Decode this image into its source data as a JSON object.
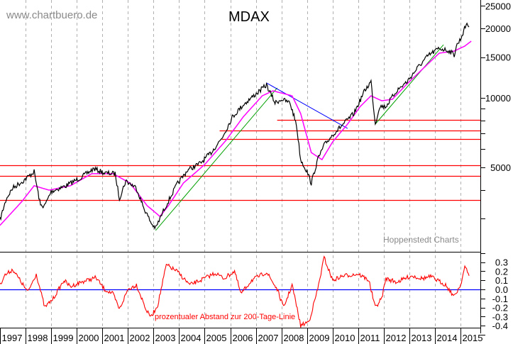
{
  "chart_data": [
    {
      "type": "line",
      "title": "MDAX",
      "watermark": "www.chartbuero.de",
      "source_label": "Hoppenstedt Charts",
      "y_scale": "log",
      "ylim": [
        2000,
        27000
      ],
      "y_ticks": [
        25000,
        20000,
        15000,
        10000,
        5000
      ],
      "y_tick_labels": [
        "25000",
        "20000",
        "15000",
        "10000",
        "5000"
      ],
      "grid": "vertical dashed at year boundaries",
      "colors": {
        "price": "#000000",
        "ma200": "#ff00ff",
        "support": "#ff0000",
        "uptrend": "#00a000",
        "downtrend": "#0000ff"
      },
      "series": [
        {
          "id": "price",
          "x": [
            "1997-01",
            "1997-04",
            "1997-07",
            "1997-12",
            "1998-05",
            "1998-08",
            "1998-10",
            "1999-01",
            "1999-08",
            "2000-03",
            "2000-09",
            "2001-02",
            "2001-07",
            "2001-09",
            "2001-12",
            "2002-05",
            "2002-08",
            "2002-12",
            "2003-02",
            "2003-06",
            "2003-12",
            "2004-05",
            "2004-11",
            "2005-04",
            "2005-09",
            "2006-02",
            "2006-07",
            "2006-12",
            "2007-06",
            "2007-10",
            "2008-01",
            "2008-05",
            "2008-08",
            "2008-10",
            "2009-01",
            "2009-03",
            "2009-06",
            "2009-09",
            "2010-01",
            "2010-06",
            "2010-11",
            "2011-04",
            "2011-07",
            "2011-09",
            "2011-11",
            "2012-02",
            "2012-07",
            "2012-12",
            "2013-05",
            "2013-10",
            "2014-03",
            "2014-08",
            "2014-10",
            "2014-11",
            "2015-01",
            "2015-04",
            "2015-05"
          ],
          "values": [
            2970,
            3670,
            4080,
            4380,
            4800,
            3420,
            3420,
            3940,
            4170,
            4530,
            4940,
            4730,
            4700,
            3670,
            4380,
            4080,
            3420,
            2860,
            2730,
            3300,
            4220,
            4870,
            5220,
            5800,
            6690,
            8260,
            9320,
            10210,
            11360,
            9520,
            9860,
            9520,
            7700,
            5410,
            4800,
            4280,
            5410,
            6230,
            6930,
            7700,
            8560,
            10730,
            11770,
            7700,
            9190,
            9190,
            10730,
            11770,
            13550,
            15280,
            16390,
            15940,
            15280,
            16750,
            17970,
            21140,
            20260
          ]
        },
        {
          "id": "ma200",
          "x": [
            "1997-01",
            "1997-11",
            "1998-05",
            "1998-12",
            "1999-10",
            "2000-08",
            "2001-06",
            "2002-02",
            "2002-10",
            "2003-04",
            "2003-08",
            "2004-03",
            "2005-01",
            "2005-11",
            "2006-07",
            "2007-04",
            "2007-09",
            "2008-06",
            "2008-10",
            "2009-03",
            "2009-08",
            "2010-01",
            "2010-08",
            "2011-02",
            "2011-07",
            "2011-12",
            "2012-05",
            "2012-12",
            "2013-08",
            "2014-03",
            "2014-10",
            "2015-03",
            "2015-06"
          ],
          "values": [
            2810,
            3540,
            4170,
            3990,
            4170,
            4700,
            4700,
            4280,
            3420,
            3070,
            3420,
            4280,
            5150,
            6550,
            8260,
            10210,
            10730,
            10210,
            8560,
            5800,
            5410,
            6450,
            7700,
            9190,
            10210,
            9720,
            9860,
            11520,
            13550,
            15610,
            15940,
            16750,
            17590
          ]
        }
      ],
      "trendlines": [
        {
          "kind": "uptrend",
          "from": [
            "2003-02",
            2670
          ],
          "to": [
            "2007-11",
            11040
          ]
        },
        {
          "kind": "uptrend",
          "from": [
            "2011-09",
            7700
          ],
          "to": [
            "2014-05",
            16980
          ]
        },
        {
          "kind": "downtrend",
          "from": [
            "2007-06",
            11600
          ],
          "to": [
            "2010-08",
            7380
          ]
        }
      ],
      "horizontal_levels": [
        {
          "value": 8030,
          "from": "2007-11"
        },
        {
          "value": 7230,
          "from": "2005-08"
        },
        {
          "value": 6640,
          "from": "2005-09"
        },
        {
          "value": 5110,
          "from": "1997-01"
        },
        {
          "value": 4600,
          "from": "1997-01"
        },
        {
          "value": 3620,
          "from": "1997-01"
        }
      ]
    },
    {
      "type": "line",
      "annotation": "prozentualer Abstand zur 200-Tage-Linie",
      "ylim": [
        -0.5,
        0.4
      ],
      "y_ticks": [
        0.3,
        0.2,
        0.1,
        0.0,
        -0.1,
        -0.2,
        -0.3,
        -0.4
      ],
      "y_tick_labels": [
        "0.3",
        "0.2",
        "0.1",
        "0.0",
        "-0.1",
        "-0.2",
        "-0.3",
        "-0.4"
      ],
      "zero_line_color": "#0000ff",
      "series": [
        {
          "id": "distance",
          "color": "#ff0000",
          "x": [
            "1997-01",
            "1997-03",
            "1997-07",
            "1997-11",
            "1998-02",
            "1998-06",
            "1998-10",
            "1999-02",
            "1999-07",
            "1999-10",
            "2000-03",
            "2000-10",
            "2001-02",
            "2001-06",
            "2001-09",
            "2002-01",
            "2002-05",
            "2002-10",
            "2002-12",
            "2003-03",
            "2003-07",
            "2003-12",
            "2004-06",
            "2004-11",
            "2005-06",
            "2005-10",
            "2006-03",
            "2006-06",
            "2006-11",
            "2007-06",
            "2007-11",
            "2008-02",
            "2008-06",
            "2008-10",
            "2009-02",
            "2009-06",
            "2009-09",
            "2010-01",
            "2010-06",
            "2011-01",
            "2011-06",
            "2011-09",
            "2011-12",
            "2012-02",
            "2012-07",
            "2013-02",
            "2013-07",
            "2013-11",
            "2014-06",
            "2014-10",
            "2015-01",
            "2015-03",
            "2015-05"
          ],
          "values": [
            0.05,
            0.15,
            0.22,
            0.08,
            -0.03,
            0.17,
            -0.2,
            -0.1,
            0.1,
            0.03,
            0.08,
            0.13,
            0.0,
            -0.05,
            -0.22,
            0.0,
            0.05,
            -0.25,
            -0.3,
            -0.17,
            0.27,
            0.2,
            0.05,
            0.1,
            0.18,
            0.12,
            0.2,
            -0.05,
            0.1,
            0.19,
            0.0,
            -0.2,
            0.05,
            -0.4,
            -0.35,
            0.0,
            0.35,
            0.1,
            0.15,
            0.17,
            0.1,
            -0.2,
            -0.1,
            0.12,
            0.08,
            0.15,
            0.12,
            0.14,
            0.05,
            -0.08,
            0.05,
            0.25,
            0.15
          ]
        }
      ]
    }
  ],
  "x_axis": {
    "tick_labels": [
      "1997",
      "1998",
      "1999",
      "2000",
      "2001",
      "2002",
      "2003",
      "2004",
      "2005",
      "2006",
      "2007",
      "2008",
      "2009",
      "2010",
      "2011",
      "2012",
      "2013",
      "2014",
      "2015"
    ]
  }
}
